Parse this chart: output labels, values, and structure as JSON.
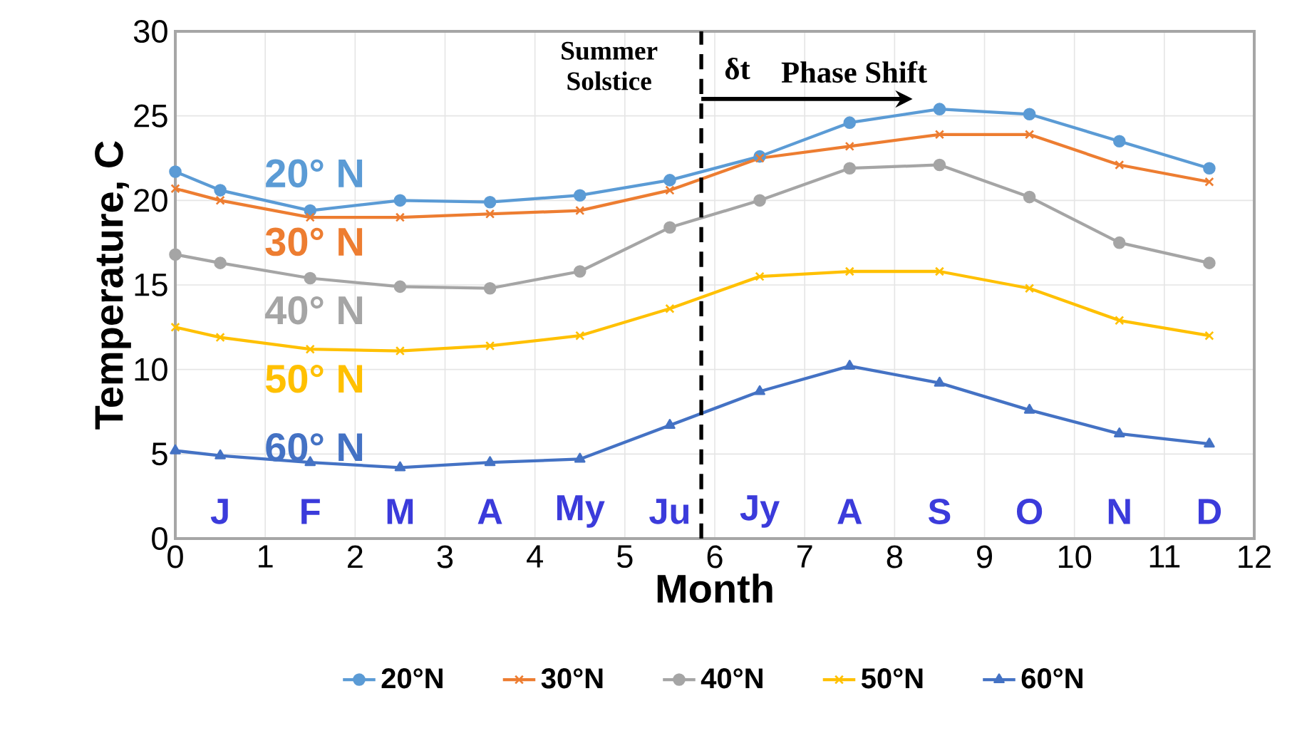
{
  "chart_data": {
    "type": "line",
    "xlabel": "Month",
    "ylabel": "Temperature, C",
    "xlim": [
      0,
      12
    ],
    "ylim": [
      0,
      30
    ],
    "xticks": [
      0,
      1,
      2,
      3,
      4,
      5,
      6,
      7,
      8,
      9,
      10,
      11,
      12
    ],
    "yticks": [
      0,
      5,
      10,
      15,
      20,
      25,
      30
    ],
    "grid": true,
    "legend": "bottom",
    "x": [
      0,
      0.5,
      1.5,
      2.5,
      3.5,
      4.5,
      5.5,
      6.5,
      7.5,
      8.5,
      9.5,
      10.5,
      11.5
    ],
    "series": [
      {
        "name": "20°N",
        "color": "#5b9bd5",
        "marker": "circle",
        "values": [
          21.7,
          20.6,
          19.4,
          20.0,
          19.9,
          20.3,
          21.2,
          22.6,
          24.6,
          25.4,
          25.1,
          23.5,
          21.9
        ]
      },
      {
        "name": "30°N",
        "color": "#ed7d31",
        "marker": "cross",
        "values": [
          20.7,
          20.0,
          19.0,
          19.0,
          19.2,
          19.4,
          20.6,
          22.5,
          23.2,
          23.9,
          23.9,
          22.1,
          21.1
        ]
      },
      {
        "name": "40°N",
        "color": "#a5a5a5",
        "marker": "circle",
        "values": [
          16.8,
          16.3,
          15.4,
          14.9,
          14.8,
          15.8,
          18.4,
          20.0,
          21.9,
          22.1,
          20.2,
          17.5,
          16.3
        ]
      },
      {
        "name": "50°N",
        "color": "#ffc000",
        "marker": "cross",
        "values": [
          12.5,
          11.9,
          11.2,
          11.1,
          11.4,
          12.0,
          13.6,
          15.5,
          15.8,
          15.8,
          14.8,
          12.9,
          12.0
        ]
      },
      {
        "name": "60°N",
        "color": "#4472c4",
        "marker": "triangle",
        "values": [
          5.2,
          4.9,
          4.5,
          4.2,
          4.5,
          4.7,
          6.7,
          8.7,
          10.2,
          9.2,
          7.6,
          6.2,
          5.6
        ]
      }
    ],
    "ref_lines": [
      {
        "axis": "x",
        "value": 5.85,
        "label": "Summer Solstice",
        "color": "#000000",
        "line_style": "dashed"
      }
    ],
    "annotations": [
      "20° N",
      "30° N",
      "40° N",
      "50° N",
      "60° N",
      "J",
      "F",
      "M",
      "A",
      "My",
      "Ju",
      "Jy",
      "A",
      "S",
      "O",
      "N",
      "D",
      "δt",
      "Phase Shift"
    ]
  }
}
